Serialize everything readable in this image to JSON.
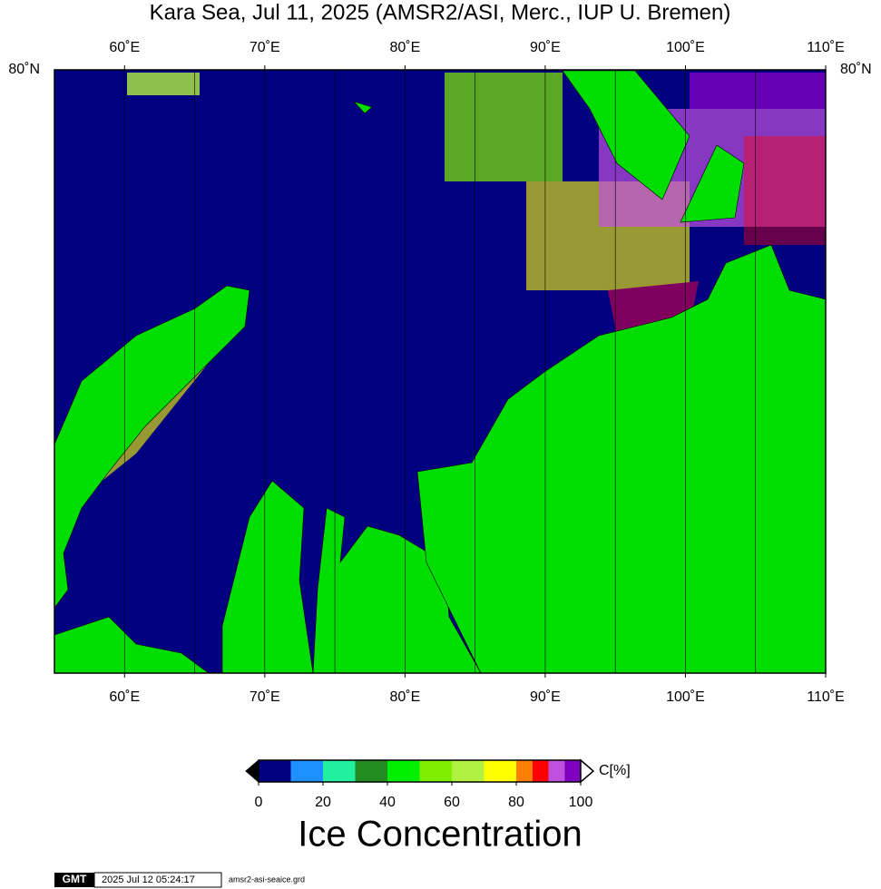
{
  "title": "Kara Sea, Jul 11, 2025 (AMSR2/ASI, Merc., IUP U. Bremen)",
  "map": {
    "xlim": [
      55,
      110
    ],
    "lon_labels": [
      {
        "value": 60,
        "label": "60˚E"
      },
      {
        "value": 70,
        "label": "70˚E"
      },
      {
        "value": 80,
        "label": "80˚E"
      },
      {
        "value": 90,
        "label": "90˚E"
      },
      {
        "value": 100,
        "label": "100˚E"
      },
      {
        "value": 110,
        "label": "110˚E"
      }
    ],
    "grid_lons": [
      60,
      65,
      70,
      75,
      80,
      85,
      90,
      95,
      100,
      105
    ],
    "lat_label": "80˚N",
    "ocean_color": "#000080",
    "land_color": "#00dd00"
  },
  "colorbar": {
    "range": [
      0,
      100
    ],
    "ticks": [
      0,
      20,
      40,
      60,
      80,
      100
    ],
    "unit": "C[%]",
    "levels": [
      0,
      10,
      20,
      30,
      40,
      50,
      60,
      70,
      80,
      85,
      90,
      95,
      100
    ],
    "colors": [
      "#000080",
      "#1e90ff",
      "#20f0a0",
      "#228b22",
      "#00ee00",
      "#80ee00",
      "#b0f040",
      "#ffff00",
      "#ff8000",
      "#ff0000",
      "#c050e0",
      "#8000c0"
    ],
    "label": "Ice Concentration"
  },
  "footer": {
    "logo": "GMT",
    "timestamp": "2025 Jul 12 05:24:17",
    "file": "amsr2-asi-seaice.grd"
  }
}
